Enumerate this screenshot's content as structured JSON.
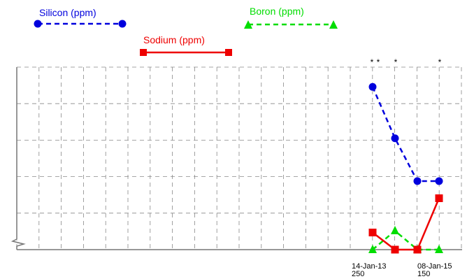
{
  "chart_data": {
    "type": "line",
    "title": "",
    "xlabel": "",
    "ylabel": "",
    "grid": true,
    "legend_placement": "top",
    "x_tick_labels": [
      {
        "date": "14-Jan-13",
        "sub": "250"
      },
      {
        "date": "08-Jan-15",
        "sub": "150"
      }
    ],
    "markers": [
      "*",
      "*",
      "*",
      "*"
    ],
    "series": [
      {
        "name": "Silicon (ppm)",
        "color": "#0000dd",
        "style": "dashed",
        "marker": "circle",
        "values": [
          9.5,
          6.5,
          4.0,
          4.0
        ]
      },
      {
        "name": "Sodium (ppm)",
        "color": "#ee0000",
        "style": "solid",
        "marker": "square",
        "values": [
          1.0,
          0.0,
          0.0,
          3.0
        ]
      },
      {
        "name": "Boron (ppm)",
        "color": "#00dd00",
        "style": "dashed",
        "marker": "triangle",
        "values": [
          0.0,
          1.1,
          0.0,
          0.0
        ]
      }
    ],
    "ylim": [
      0,
      10
    ]
  }
}
